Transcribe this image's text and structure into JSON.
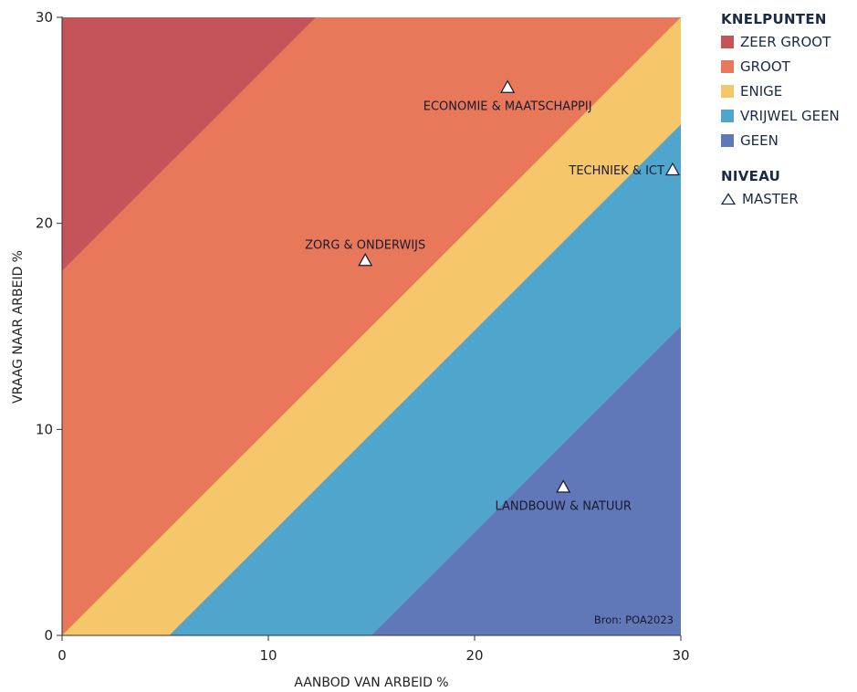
{
  "chart_data": {
    "type": "scatter",
    "title": "",
    "xlabel": "AANBOD VAN ARBEID %",
    "ylabel": "VRAAG NAAR ARBEID %",
    "xlim": [
      0,
      30
    ],
    "ylim": [
      0,
      30
    ],
    "x_ticks": [
      "0",
      "10",
      "20",
      "30"
    ],
    "y_ticks": [
      "0",
      "10",
      "20",
      "30"
    ],
    "grid": false,
    "legend_position": "right",
    "background_bands": [
      {
        "name": "ZEER GROOT",
        "color": "#c4535a",
        "boundary": "y = x + 17.7 (above)"
      },
      {
        "name": "GROOT",
        "color": "#e8785a",
        "boundary": "y = x (above) to y = x + 17.7"
      },
      {
        "name": "ENIGE",
        "color": "#f6c76a",
        "boundary": "y = x - 5.2 to y = x"
      },
      {
        "name": "VRIJWEL GEEN",
        "color": "#4fa5cc",
        "boundary": "y = x - 15 to y = x - 5.2"
      },
      {
        "name": "GEEN",
        "color": "#6178b8",
        "boundary": "below y = x - 15"
      }
    ],
    "points": [
      {
        "label": "ECONOMIE & MAATSCHAPPIJ",
        "x": 21.6,
        "y": 26.6,
        "label_side": "below"
      },
      {
        "label": "TECHNIEK & ICT",
        "x": 29.6,
        "y": 22.6,
        "label_side": "left"
      },
      {
        "label": "ZORG & ONDERWIJS",
        "x": 14.7,
        "y": 18.2,
        "label_side": "above"
      },
      {
        "label": "LANDBOUW & NATUUR",
        "x": 24.3,
        "y": 7.2,
        "label_side": "below"
      }
    ],
    "annotation": "Bron: POA2023"
  },
  "legend": {
    "knelpunten_title": "KNELPUNTEN",
    "items": [
      {
        "label": "ZEER GROOT",
        "color": "#c4535a"
      },
      {
        "label": "GROOT",
        "color": "#e8785a"
      },
      {
        "label": "ENIGE",
        "color": "#f6c76a"
      },
      {
        "label": "VRIJWEL GEEN",
        "color": "#4fa5cc"
      },
      {
        "label": "GEEN",
        "color": "#6178b8"
      }
    ],
    "niveau_title": "NIVEAU",
    "niveau_item": "MASTER",
    "marker_icon": "triangle-outline-icon"
  }
}
